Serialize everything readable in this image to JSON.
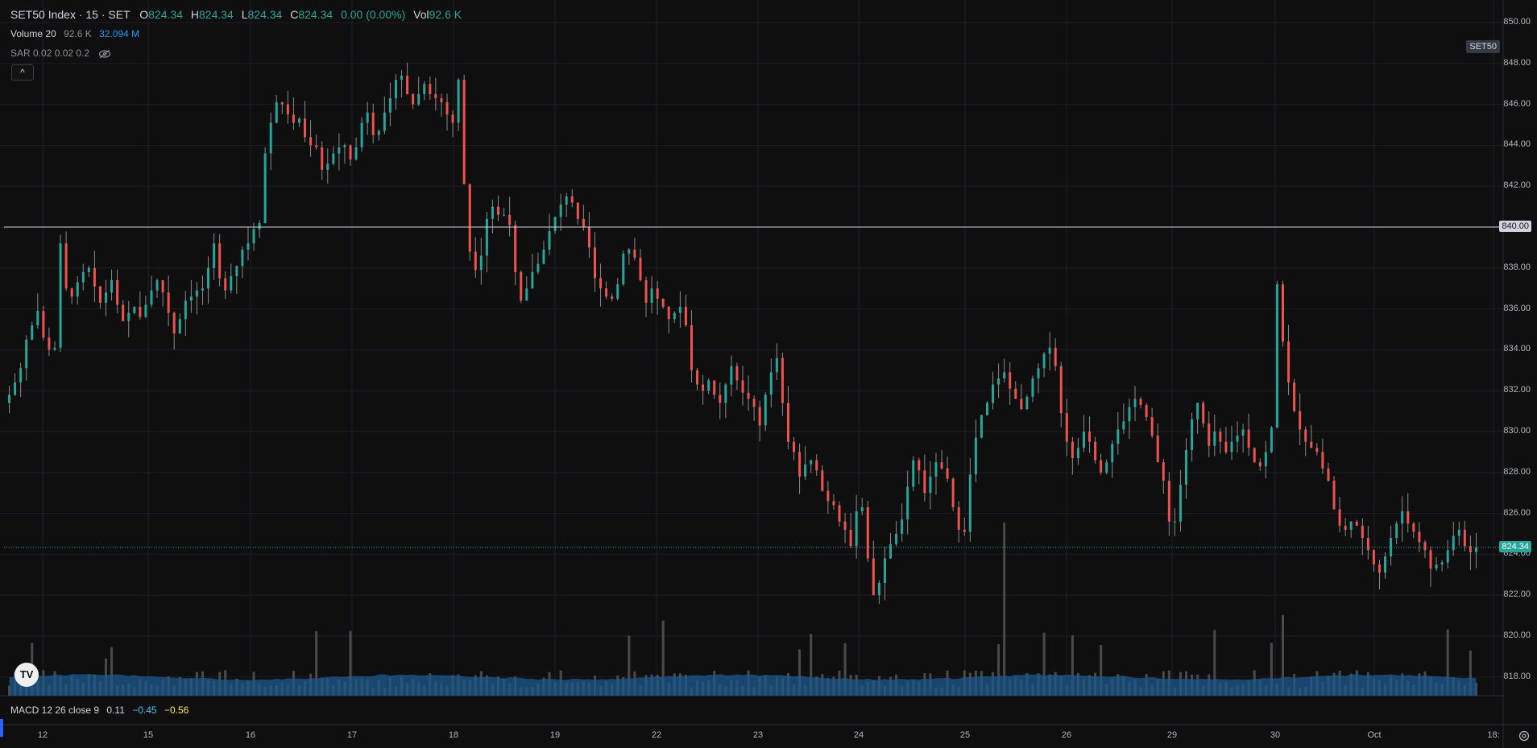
{
  "header": {
    "symbol": "SET50 Index · 15 · SET",
    "o_label": "O",
    "o_value": "824.34",
    "h_label": "H",
    "h_value": "824.34",
    "l_label": "L",
    "l_value": "824.34",
    "c_label": "C",
    "c_value": "824.34",
    "change": "0.00 (0.00%)",
    "vol_label": "Vol",
    "vol_value": "92.6 K"
  },
  "volume_indicator": {
    "name": "Volume 20",
    "value1": "92.6 K",
    "value2": "32.094 M"
  },
  "sar_indicator": {
    "name": "SAR 0.02 0.02 0.2"
  },
  "collapse_symbol": "^",
  "macd": {
    "name": "MACD 12 26 close 9",
    "v1": "0.11",
    "v2": "−0.45",
    "v3": "−0.56"
  },
  "symbol_tag": "SET50",
  "price_axis": {
    "labels": [
      "850.00",
      "848.00",
      "846.00",
      "844.00",
      "842.00",
      "840.00",
      "838.00",
      "836.00",
      "834.00",
      "832.00",
      "830.00",
      "828.00",
      "826.00",
      "824.00",
      "822.00",
      "820.00",
      "818.00"
    ],
    "crosshair_price": "840.00",
    "last_price": "824.34"
  },
  "time_axis": {
    "labels": [
      "12",
      "15",
      "16",
      "17",
      "18",
      "19",
      "22",
      "23",
      "24",
      "25",
      "26",
      "29",
      "30",
      "Oct",
      "18:"
    ]
  },
  "tv_logo_text": "TV",
  "colors": {
    "up": "#26a69a",
    "down": "#ef5350",
    "background": "#0f0f0f",
    "volume_ma": "#1e5a8c",
    "volume_bar": "#4a4a4a"
  },
  "chart_data": {
    "type": "candlestick",
    "ylim": [
      817,
      851
    ],
    "closes": [
      831.8,
      832.4,
      833.1,
      834.5,
      835.2,
      835.9,
      834.6,
      834.0,
      834.1,
      839.2,
      837.0,
      836.6,
      837.3,
      837.8,
      838.0,
      837.1,
      836.3,
      836.8,
      837.4,
      836.2,
      835.4,
      835.8,
      836.1,
      835.6,
      836.2,
      836.9,
      837.4,
      836.8,
      835.8,
      834.8,
      835.5,
      836.4,
      836.6,
      836.9,
      837.0,
      838.0,
      839.2,
      837.5,
      836.9,
      837.6,
      838.1,
      838.9,
      839.2,
      839.9,
      840.2,
      843.6,
      845.1,
      846.1,
      846.0,
      845.5,
      845.1,
      845.3,
      844.4,
      844.0,
      843.9,
      842.8,
      843.1,
      843.6,
      843.9,
      844.0,
      843.3,
      843.9,
      845.1,
      845.6,
      844.5,
      844.7,
      845.6,
      846.3,
      847.2,
      847.4,
      846.5,
      846.0,
      846.5,
      847.0,
      846.5,
      846.3,
      846.1,
      845.5,
      845.1,
      847.2,
      842.1,
      838.8,
      837.9,
      838.6,
      840.4,
      841.0,
      840.6,
      840.6,
      840.1,
      837.8,
      836.4,
      837.0,
      837.8,
      838.2,
      838.9,
      839.8,
      840.5,
      841.1,
      841.5,
      841.2,
      840.4,
      840.0,
      839.0,
      837.5,
      837.0,
      836.6,
      836.5,
      837.2,
      838.7,
      838.9,
      838.5,
      837.4,
      836.3,
      837.0,
      836.5,
      836.1,
      835.5,
      835.8,
      836.1,
      835.2,
      833.0,
      832.3,
      832.0,
      832.5,
      831.8,
      831.4,
      832.3,
      833.2,
      832.5,
      831.9,
      831.6,
      831.2,
      830.3,
      831.8,
      832.9,
      833.6,
      831.4,
      829.5,
      829.0,
      827.8,
      828.4,
      828.6,
      828.1,
      827.1,
      826.6,
      826.4,
      825.6,
      825.2,
      824.4,
      826.1,
      826.3,
      823.8,
      822.0,
      822.6,
      823.8,
      824.5,
      825.0,
      825.7,
      827.3,
      828.6,
      828.1,
      827.0,
      827.8,
      828.5,
      828.2,
      827.7,
      826.3,
      825.2,
      825.1,
      827.9,
      829.7,
      830.8,
      831.4,
      832.3,
      832.6,
      832.9,
      832.1,
      831.6,
      831.1,
      831.7,
      832.6,
      833.1,
      833.8,
      834.1,
      833.2,
      830.9,
      829.5,
      828.7,
      829.2,
      830.0,
      829.5,
      828.6,
      828.0,
      828.5,
      829.4,
      830.1,
      830.5,
      831.2,
      831.6,
      831.3,
      830.7,
      829.8,
      828.5,
      827.6,
      825.6,
      825.6,
      827.4,
      829.1,
      830.6,
      831.4,
      830.4,
      829.3,
      830.0,
      829.5,
      829.0,
      829.5,
      829.8,
      830.1,
      829.2,
      828.5,
      828.3,
      829.0,
      830.2,
      837.2,
      834.4,
      832.4,
      831.0,
      830.1,
      829.5,
      829.2,
      829.0,
      828.2,
      827.6,
      826.2,
      825.4,
      825.2,
      825.6,
      825.4,
      824.8,
      824.2,
      823.5,
      823.1,
      823.9,
      824.8,
      825.5,
      826.1,
      825.5,
      825.1,
      824.6,
      824.2,
      823.3,
      823.5,
      823.6,
      824.2,
      824.9,
      825.2,
      824.4,
      824.1,
      824.34
    ]
  }
}
